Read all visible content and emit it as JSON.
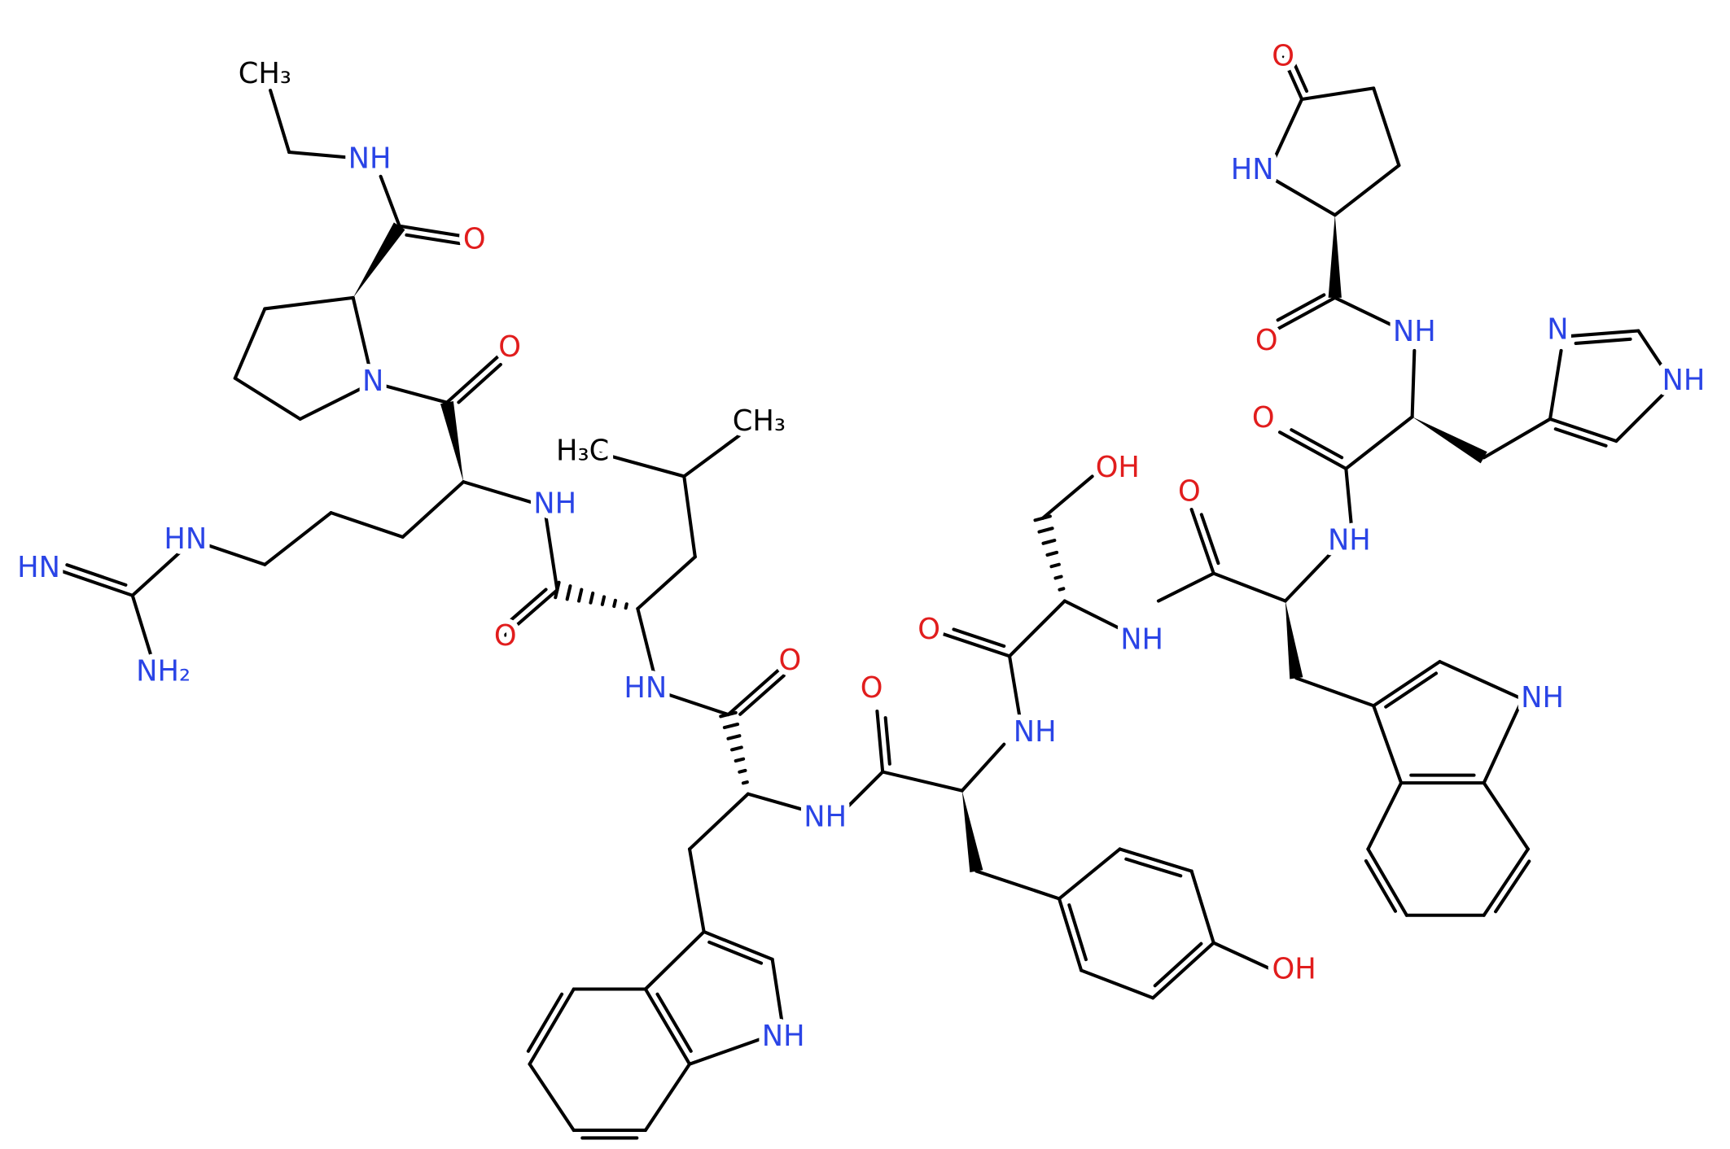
{
  "nodes": [
    {
      "label": "CH₃"
    },
    {
      "label": "NH"
    },
    {
      "label": "O"
    },
    {
      "label": "N"
    },
    {
      "label": "O"
    },
    {
      "label": "NH"
    },
    {
      "label": "HN"
    },
    {
      "label": "HN"
    },
    {
      "label": "NH₂"
    },
    {
      "label": "O"
    },
    {
      "label": "H₃C"
    },
    {
      "label": "CH₃"
    },
    {
      "label": "HN"
    },
    {
      "label": "O"
    },
    {
      "label": "O"
    },
    {
      "label": "NH"
    },
    {
      "label": "NH"
    },
    {
      "label": "OH"
    },
    {
      "label": "O"
    },
    {
      "label": "NH"
    },
    {
      "label": "O"
    },
    {
      "label": "NH"
    },
    {
      "label": "N"
    },
    {
      "label": "NH"
    },
    {
      "label": "O"
    },
    {
      "label": "NH"
    },
    {
      "label": "O"
    },
    {
      "label": "HN"
    },
    {
      "label": "O"
    },
    {
      "label": "NH"
    },
    {
      "label": "NH"
    },
    {
      "label": "OH"
    }
  ]
}
